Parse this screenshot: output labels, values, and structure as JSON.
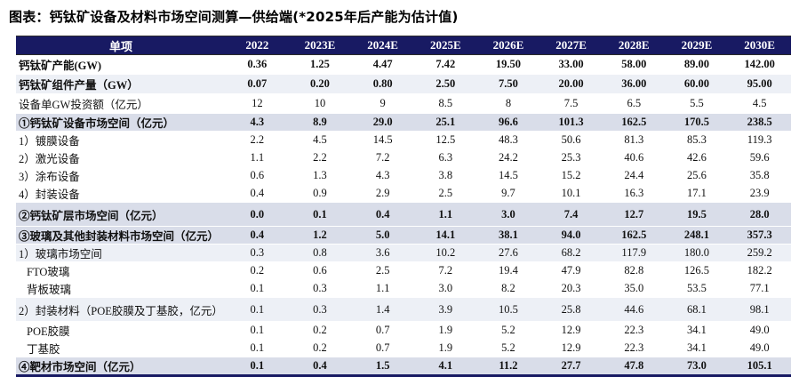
{
  "title": "图表：钙钛矿设备及材料市场空间测算—供给端(*2025年后产能为估计值)",
  "colors": {
    "header_bg": "#181a63",
    "header_text": "#ffffff",
    "row_dark": "#d9dde9",
    "row_light": "#edf0f6",
    "table_border": "#181a63"
  },
  "table": {
    "columns": [
      "单项",
      "2022",
      "2023E",
      "2024E",
      "2025E",
      "2026E",
      "2027E",
      "2028E",
      "2029E",
      "2030E"
    ],
    "rows": [
      {
        "label": "钙钛矿产能(GW)",
        "bold": true,
        "bg": "white",
        "indent": 0,
        "tall": false,
        "values": [
          "0.36",
          "1.25",
          "4.47",
          "7.42",
          "19.50",
          "33.00",
          "58.00",
          "89.00",
          "142.00"
        ]
      },
      {
        "label": "钙钛矿组件产量（GW）",
        "bold": true,
        "bg": "light",
        "indent": 0,
        "tall": false,
        "values": [
          "0.07",
          "0.20",
          "0.80",
          "2.50",
          "7.50",
          "20.00",
          "36.00",
          "60.00",
          "95.00"
        ]
      },
      {
        "label": "设备单GW投资额（亿元）",
        "bold": false,
        "bg": "white",
        "indent": 0,
        "tall": false,
        "values": [
          "12",
          "10",
          "9",
          "8.5",
          "8",
          "7.5",
          "6.5",
          "5.5",
          "4.5"
        ]
      },
      {
        "label": "①钙钛矿设备市场空间（亿元）",
        "bold": true,
        "bg": "dark",
        "indent": 0,
        "tall": false,
        "values": [
          "4.3",
          "8.9",
          "29.0",
          "25.1",
          "96.6",
          "101.3",
          "162.5",
          "170.5",
          "238.5"
        ]
      },
      {
        "label": "1）镀膜设备",
        "bold": false,
        "bg": "white",
        "indent": 0,
        "tall": false,
        "values": [
          "2.2",
          "4.5",
          "14.5",
          "12.5",
          "48.3",
          "50.6",
          "81.3",
          "85.3",
          "119.3"
        ]
      },
      {
        "label": "2）激光设备",
        "bold": false,
        "bg": "white",
        "indent": 0,
        "tall": false,
        "values": [
          "1.1",
          "2.2",
          "7.2",
          "6.3",
          "24.2",
          "25.3",
          "40.6",
          "42.6",
          "59.6"
        ]
      },
      {
        "label": "3）涂布设备",
        "bold": false,
        "bg": "white",
        "indent": 0,
        "tall": false,
        "values": [
          "0.6",
          "1.3",
          "4.3",
          "3.8",
          "14.5",
          "15.2",
          "24.4",
          "25.6",
          "35.8"
        ]
      },
      {
        "label": "4）封装设备",
        "bold": false,
        "bg": "white",
        "indent": 0,
        "tall": false,
        "values": [
          "0.4",
          "0.9",
          "2.9",
          "2.5",
          "9.7",
          "10.1",
          "16.3",
          "17.1",
          "23.9"
        ]
      },
      {
        "label": "②钙钛矿层市场空间（亿元）",
        "bold": true,
        "bg": "dark",
        "indent": 0,
        "tall": true,
        "values": [
          "0.0",
          "0.1",
          "0.4",
          "1.1",
          "3.0",
          "7.4",
          "12.7",
          "19.5",
          "28.0"
        ]
      },
      {
        "label": "③玻璃及其他封装材料市场空间（亿元）",
        "bold": true,
        "bg": "dark",
        "indent": 0,
        "tall": false,
        "values": [
          "0.4",
          "1.2",
          "5.0",
          "14.1",
          "38.1",
          "94.0",
          "162.5",
          "248.1",
          "357.3"
        ]
      },
      {
        "label": "1）玻璃市场空间",
        "bold": false,
        "bg": "light",
        "indent": 0,
        "tall": false,
        "values": [
          "0.3",
          "0.8",
          "3.6",
          "10.2",
          "27.6",
          "68.2",
          "117.9",
          "180.0",
          "259.2"
        ]
      },
      {
        "label": "FTO玻璃",
        "bold": false,
        "bg": "white",
        "indent": 1,
        "tall": false,
        "values": [
          "0.2",
          "0.6",
          "2.5",
          "7.2",
          "19.4",
          "47.9",
          "82.8",
          "126.5",
          "182.2"
        ]
      },
      {
        "label": "背板玻璃",
        "bold": false,
        "bg": "white",
        "indent": 1,
        "tall": false,
        "values": [
          "0.1",
          "0.3",
          "1.1",
          "3.0",
          "8.2",
          "20.3",
          "35.0",
          "53.5",
          "77.1"
        ]
      },
      {
        "label": "2）封装材料（POE胶膜及丁基胶，亿元）",
        "bold": false,
        "bg": "light",
        "indent": 0,
        "tall": true,
        "values": [
          "0.1",
          "0.3",
          "1.4",
          "3.9",
          "10.5",
          "25.8",
          "44.6",
          "68.1",
          "98.1"
        ]
      },
      {
        "label": "POE胶膜",
        "bold": false,
        "bg": "white",
        "indent": 1,
        "tall": false,
        "values": [
          "0.1",
          "0.2",
          "0.7",
          "1.9",
          "5.2",
          "12.9",
          "22.3",
          "34.1",
          "49.0"
        ]
      },
      {
        "label": "丁基胶",
        "bold": false,
        "bg": "white",
        "indent": 1,
        "tall": false,
        "values": [
          "0.1",
          "0.2",
          "0.7",
          "1.9",
          "5.2",
          "12.9",
          "22.3",
          "34.1",
          "49.0"
        ]
      },
      {
        "label": "④靶材市场空间（亿元）",
        "bold": true,
        "bg": "dark",
        "indent": 0,
        "tall": false,
        "values": [
          "0.1",
          "0.4",
          "1.5",
          "4.1",
          "11.2",
          "27.7",
          "47.8",
          "73.0",
          "105.1"
        ]
      }
    ]
  },
  "chart_data": {
    "type": "table",
    "title": "钙钛矿设备及材料市场空间测算—供给端(*2025年后产能为估计值)",
    "categories": [
      "2022",
      "2023E",
      "2024E",
      "2025E",
      "2026E",
      "2027E",
      "2028E",
      "2029E",
      "2030E"
    ],
    "series": [
      {
        "name": "钙钛矿产能(GW)",
        "values": [
          0.36,
          1.25,
          4.47,
          7.42,
          19.5,
          33.0,
          58.0,
          89.0,
          142.0
        ]
      },
      {
        "name": "钙钛矿组件产量（GW）",
        "values": [
          0.07,
          0.2,
          0.8,
          2.5,
          7.5,
          20.0,
          36.0,
          60.0,
          95.0
        ]
      },
      {
        "name": "设备单GW投资额（亿元）",
        "values": [
          12,
          10,
          9,
          8.5,
          8,
          7.5,
          6.5,
          5.5,
          4.5
        ]
      },
      {
        "name": "①钙钛矿设备市场空间（亿元）",
        "values": [
          4.3,
          8.9,
          29.0,
          25.1,
          96.6,
          101.3,
          162.5,
          170.5,
          238.5
        ]
      },
      {
        "name": "1）镀膜设备",
        "values": [
          2.2,
          4.5,
          14.5,
          12.5,
          48.3,
          50.6,
          81.3,
          85.3,
          119.3
        ]
      },
      {
        "name": "2）激光设备",
        "values": [
          1.1,
          2.2,
          7.2,
          6.3,
          24.2,
          25.3,
          40.6,
          42.6,
          59.6
        ]
      },
      {
        "name": "3）涂布设备",
        "values": [
          0.6,
          1.3,
          4.3,
          3.8,
          14.5,
          15.2,
          24.4,
          25.6,
          35.8
        ]
      },
      {
        "name": "4）封装设备",
        "values": [
          0.4,
          0.9,
          2.9,
          2.5,
          9.7,
          10.1,
          16.3,
          17.1,
          23.9
        ]
      },
      {
        "name": "②钙钛矿层市场空间（亿元）",
        "values": [
          0.0,
          0.1,
          0.4,
          1.1,
          3.0,
          7.4,
          12.7,
          19.5,
          28.0
        ]
      },
      {
        "name": "③玻璃及其他封装材料市场空间（亿元）",
        "values": [
          0.4,
          1.2,
          5.0,
          14.1,
          38.1,
          94.0,
          162.5,
          248.1,
          357.3
        ]
      },
      {
        "name": "1）玻璃市场空间",
        "values": [
          0.3,
          0.8,
          3.6,
          10.2,
          27.6,
          68.2,
          117.9,
          180.0,
          259.2
        ]
      },
      {
        "name": "FTO玻璃",
        "values": [
          0.2,
          0.6,
          2.5,
          7.2,
          19.4,
          47.9,
          82.8,
          126.5,
          182.2
        ]
      },
      {
        "name": "背板玻璃",
        "values": [
          0.1,
          0.3,
          1.1,
          3.0,
          8.2,
          20.3,
          35.0,
          53.5,
          77.1
        ]
      },
      {
        "name": "2）封装材料（POE胶膜及丁基胶，亿元）",
        "values": [
          0.1,
          0.3,
          1.4,
          3.9,
          10.5,
          25.8,
          44.6,
          68.1,
          98.1
        ]
      },
      {
        "name": "POE胶膜",
        "values": [
          0.1,
          0.2,
          0.7,
          1.9,
          5.2,
          12.9,
          22.3,
          34.1,
          49.0
        ]
      },
      {
        "name": "丁基胶",
        "values": [
          0.1,
          0.2,
          0.7,
          1.9,
          5.2,
          12.9,
          22.3,
          34.1,
          49.0
        ]
      },
      {
        "name": "④靶材市场空间（亿元）",
        "values": [
          0.1,
          0.4,
          1.5,
          4.1,
          11.2,
          27.7,
          47.8,
          73.0,
          105.1
        ]
      }
    ]
  }
}
